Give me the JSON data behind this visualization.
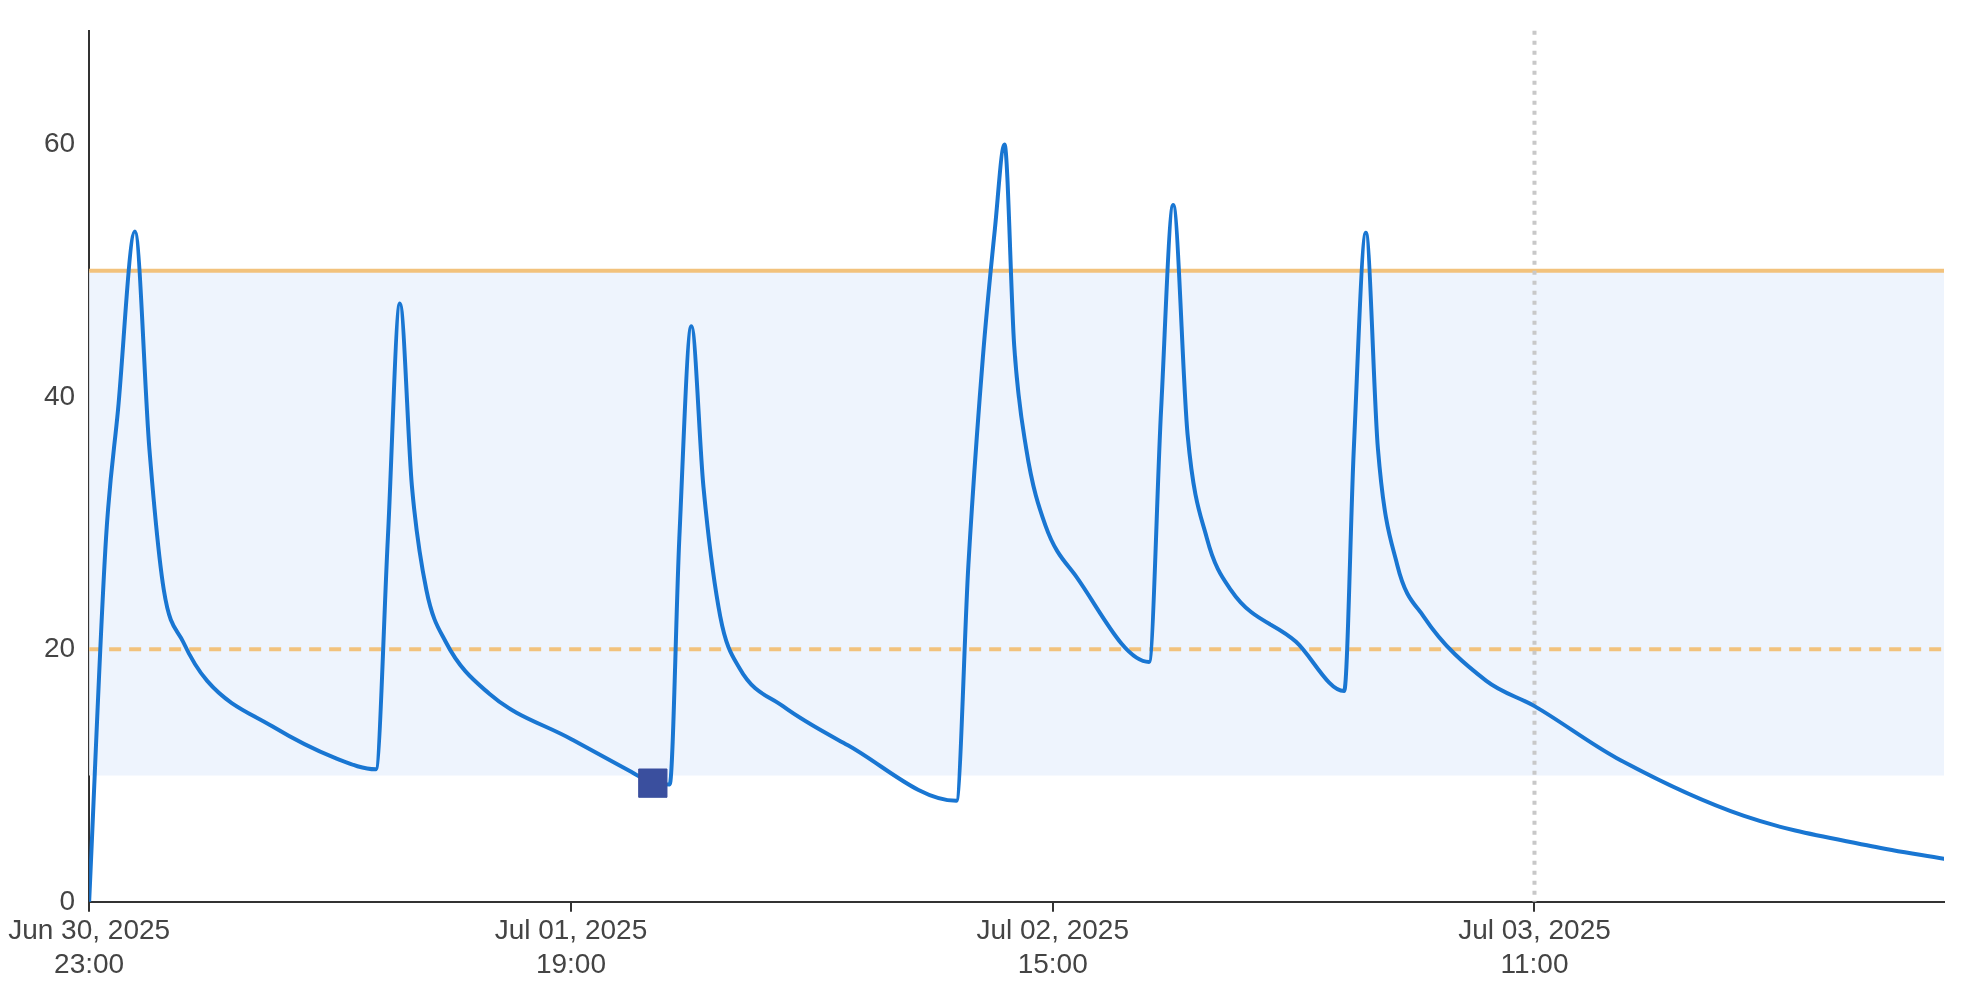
{
  "chart_data": {
    "type": "line",
    "xlim": [
      "2025-06-30T23:00",
      "2025-07-04T04:00"
    ],
    "xticks": [
      {
        "value": "2025-06-30T23:00",
        "label": "Jun 30, 2025\n23:00"
      },
      {
        "value": "2025-07-01T19:00",
        "label": "Jul 01, 2025\n19:00"
      },
      {
        "value": "2025-07-02T15:00",
        "label": "Jul 02, 2025\n15:00"
      },
      {
        "value": "2025-07-03T11:00",
        "label": "Jul 03, 2025\n11:00"
      }
    ],
    "ylim": [
      0,
      69
    ],
    "yticks": [
      0,
      20,
      40,
      60
    ],
    "grid": false,
    "legend": false,
    "series": [
      {
        "color": "#1976d2",
        "marker": "none",
        "line_style": "solid",
        "x": [
          "2025-06-30T23:00",
          "2025-06-30T23:42",
          "2025-07-01T00:12",
          "2025-07-01T00:54",
          "2025-07-01T01:30",
          "2025-07-01T02:06",
          "2025-07-01T02:54",
          "2025-07-01T03:54",
          "2025-07-01T06:36",
          "2025-07-01T09:12",
          "2025-07-01T10:54",
          "2025-07-01T11:24",
          "2025-07-01T11:54",
          "2025-07-01T12:24",
          "2025-07-01T13:00",
          "2025-07-01T13:48",
          "2025-07-01T15:36",
          "2025-07-01T19:00",
          "2025-07-01T21:30",
          "2025-07-01T22:24",
          "2025-07-01T23:06",
          "2025-07-01T23:30",
          "2025-07-02T00:00",
          "2025-07-02T00:30",
          "2025-07-02T01:12",
          "2025-07-02T02:00",
          "2025-07-02T03:48",
          "2025-07-02T06:30",
          "2025-07-02T11:00",
          "2025-07-02T11:30",
          "2025-07-02T12:06",
          "2025-07-02T12:36",
          "2025-07-02T13:00",
          "2025-07-02T13:24",
          "2025-07-02T13:54",
          "2025-07-02T14:42",
          "2025-07-02T16:00",
          "2025-07-02T19:00",
          "2025-07-02T19:30",
          "2025-07-02T20:00",
          "2025-07-02T20:36",
          "2025-07-02T21:24",
          "2025-07-02T22:24",
          "2025-07-03T01:06",
          "2025-07-03T03:06",
          "2025-07-03T03:30",
          "2025-07-03T04:00",
          "2025-07-03T04:30",
          "2025-07-03T05:18",
          "2025-07-03T06:24",
          "2025-07-03T09:00",
          "2025-07-03T11:00",
          "2025-07-03T14:24",
          "2025-07-03T19:42",
          "2025-07-04T01:00",
          "2025-07-04T04:00"
        ],
        "values": [
          0,
          28.8,
          39,
          53.1,
          35.9,
          24.7,
          20.6,
          17.5,
          13.9,
          11.4,
          10.5,
          28.8,
          47.4,
          32.9,
          24.7,
          20.6,
          16.5,
          12.9,
          10.3,
          9.4,
          9.3,
          28.8,
          45.6,
          32.9,
          22.6,
          18.5,
          15.5,
          12.4,
          8,
          26.7,
          43.1,
          53.3,
          60,
          44.1,
          35.9,
          29.8,
          25.7,
          19,
          39,
          55.2,
          37,
          28.8,
          24.7,
          20.6,
          16.7,
          35.9,
          53,
          35.9,
          26.7,
          22.6,
          17.5,
          15.5,
          11.4,
          6.8,
          4.4,
          3.4
        ]
      },
      {
        "type": "scatter",
        "color": "#3a4f9e",
        "marker": "square",
        "x": [
          "2025-07-01T22:24"
        ],
        "values": [
          9.4
        ]
      }
    ],
    "ref_lines": [
      {
        "axis": "y",
        "value": 50,
        "color": "#f2c27c",
        "line_style": "solid"
      },
      {
        "axis": "y",
        "value": 20,
        "color": "#f2c27c",
        "line_style": "dashed"
      },
      {
        "axis": "x",
        "value": "2025-07-03T11:00",
        "color": "#c8c8c8",
        "line_style": "dotted"
      }
    ],
    "bands": [
      {
        "axis": "y",
        "from": 10,
        "to": 50,
        "color": "#eef4fd"
      }
    ]
  }
}
